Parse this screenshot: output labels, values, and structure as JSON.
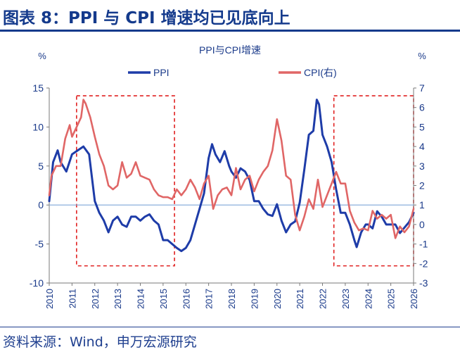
{
  "figure": {
    "title": "图表 8：PPI 与 CPI 增速均已见底向上",
    "source": "资料来源：Wind，申万宏源研究"
  },
  "chart_data": {
    "type": "line",
    "title": "PPI与CPI增速",
    "left_unit": "%",
    "right_unit": "%",
    "x_axis": {
      "ticks": [
        "2010",
        "2011",
        "2012",
        "2013",
        "2014",
        "2015",
        "2016",
        "2017",
        "2018",
        "2019",
        "2020",
        "2021",
        "2022",
        "2023",
        "2024",
        "2025",
        "2026"
      ],
      "range": [
        2010,
        2026
      ]
    },
    "y_left": {
      "ticks": [
        "15",
        "10",
        "5",
        "0",
        "-5",
        "-10"
      ],
      "ylim": [
        -10,
        15
      ]
    },
    "y_right": {
      "ticks": [
        "7",
        "6",
        "5",
        "4",
        "3",
        "2",
        "1",
        "0",
        "-1",
        "-2",
        "-3"
      ],
      "ylim": [
        -3,
        7
      ]
    },
    "legend_position": "top",
    "colors": {
      "PPI": "#1e3ca8",
      "CPI": "#e06666",
      "box": "#e02020",
      "zero_line": "#7fa7d9"
    },
    "highlight_periods": [
      {
        "x": [
          2011.2,
          2015.5
        ],
        "y_left": [
          -7.8,
          14
        ]
      },
      {
        "x": [
          2022.5,
          2026.0
        ],
        "y_left": [
          -7.8,
          14
        ]
      }
    ],
    "series": [
      {
        "name": "PPI",
        "axis": "left",
        "x": [
          2010.0,
          2010.17,
          2010.37,
          2010.5,
          2010.75,
          2011.0,
          2011.25,
          2011.5,
          2011.75,
          2012.0,
          2012.2,
          2012.4,
          2012.6,
          2012.8,
          2013.0,
          2013.2,
          2013.4,
          2013.6,
          2013.8,
          2014.0,
          2014.2,
          2014.4,
          2014.6,
          2014.8,
          2015.0,
          2015.2,
          2015.4,
          2015.6,
          2015.8,
          2016.0,
          2016.2,
          2016.4,
          2016.6,
          2016.8,
          2017.0,
          2017.15,
          2017.3,
          2017.5,
          2017.7,
          2017.9,
          2018.0,
          2018.2,
          2018.4,
          2018.6,
          2018.8,
          2019.0,
          2019.2,
          2019.4,
          2019.6,
          2019.8,
          2020.0,
          2020.2,
          2020.4,
          2020.6,
          2020.8,
          2021.0,
          2021.2,
          2021.4,
          2021.6,
          2021.75,
          2021.85,
          2022.0,
          2022.2,
          2022.4,
          2022.6,
          2022.8,
          2023.0,
          2023.2,
          2023.4,
          2023.5,
          2023.7,
          2023.9,
          2024.0,
          2024.2,
          2024.4,
          2024.6,
          2024.8,
          2025.0,
          2025.2,
          2025.4,
          2025.6,
          2025.8,
          2026.0
        ],
        "values": [
          0.5,
          5.5,
          7.0,
          5.5,
          4.3,
          6.5,
          7.0,
          7.5,
          6.5,
          0.5,
          -1.0,
          -2.0,
          -3.5,
          -2.0,
          -1.5,
          -2.5,
          -2.8,
          -1.5,
          -1.5,
          -2.0,
          -1.5,
          -1.2,
          -2.0,
          -2.5,
          -4.5,
          -4.5,
          -5.0,
          -5.5,
          -5.9,
          -5.5,
          -4.5,
          -2.5,
          -0.5,
          1.5,
          6.0,
          7.8,
          6.5,
          5.5,
          6.9,
          5.0,
          4.3,
          3.5,
          4.7,
          4.3,
          3.2,
          0.5,
          0.5,
          -0.5,
          -1.2,
          -1.4,
          0.1,
          -2.0,
          -3.5,
          -2.5,
          -2.1,
          0.3,
          4.5,
          9.0,
          9.5,
          13.5,
          12.9,
          9.0,
          7.5,
          5.5,
          2.0,
          -1.0,
          -1.0,
          -2.5,
          -4.5,
          -5.4,
          -3.5,
          -2.5,
          -2.5,
          -3.0,
          -0.8,
          -1.5,
          -2.5,
          -2.5,
          -2.5,
          -3.6,
          -2.9,
          -2.2,
          -1.0
        ]
      },
      {
        "name": "CPI(右)",
        "axis": "right",
        "x": [
          2010.0,
          2010.1,
          2010.3,
          2010.5,
          2010.7,
          2010.9,
          2011.0,
          2011.2,
          2011.4,
          2011.5,
          2011.6,
          2011.8,
          2012.0,
          2012.2,
          2012.4,
          2012.6,
          2012.8,
          2013.0,
          2013.2,
          2013.4,
          2013.6,
          2013.8,
          2014.0,
          2014.2,
          2014.4,
          2014.6,
          2014.8,
          2015.0,
          2015.2,
          2015.4,
          2015.6,
          2015.8,
          2016.0,
          2016.2,
          2016.4,
          2016.6,
          2016.8,
          2017.0,
          2017.2,
          2017.4,
          2017.6,
          2017.8,
          2018.0,
          2018.2,
          2018.4,
          2018.6,
          2018.8,
          2019.0,
          2019.2,
          2019.4,
          2019.6,
          2019.8,
          2020.0,
          2020.2,
          2020.4,
          2020.6,
          2020.8,
          2021.0,
          2021.2,
          2021.4,
          2021.6,
          2021.8,
          2022.0,
          2022.2,
          2022.4,
          2022.6,
          2022.8,
          2023.0,
          2023.2,
          2023.4,
          2023.6,
          2023.8,
          2024.0,
          2024.2,
          2024.4,
          2024.6,
          2024.8,
          2025.0,
          2025.2,
          2025.4,
          2025.6,
          2025.8,
          2026.0
        ],
        "values": [
          1.5,
          2.5,
          3.0,
          3.0,
          4.4,
          5.1,
          4.5,
          5.0,
          5.5,
          6.4,
          6.2,
          5.5,
          4.5,
          3.6,
          3.0,
          2.0,
          1.8,
          2.0,
          3.2,
          2.4,
          2.6,
          3.2,
          2.5,
          2.4,
          2.3,
          1.8,
          1.5,
          1.4,
          1.4,
          1.3,
          1.8,
          1.5,
          1.8,
          2.3,
          1.9,
          1.3,
          2.1,
          2.5,
          0.8,
          1.5,
          1.8,
          1.9,
          1.5,
          2.9,
          1.8,
          2.3,
          2.5,
          1.7,
          2.3,
          2.7,
          3.0,
          3.8,
          5.4,
          4.3,
          2.5,
          2.3,
          0.5,
          -0.3,
          0.4,
          1.3,
          0.8,
          2.3,
          0.9,
          1.5,
          2.1,
          2.7,
          2.1,
          2.1,
          0.7,
          0.1,
          -0.3,
          -0.2,
          -0.3,
          0.7,
          0.3,
          0.5,
          0.3,
          0.5,
          -0.7,
          -0.1,
          -0.4,
          -0.1,
          0.8
        ]
      }
    ]
  }
}
